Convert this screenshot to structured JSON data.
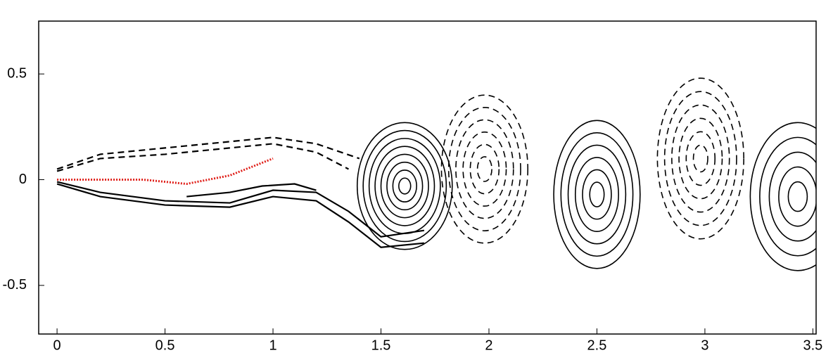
{
  "chart_data": {
    "type": "contour",
    "xlim": [
      -0.085,
      3.515
    ],
    "ylim": [
      -0.73,
      0.75
    ],
    "xticks": [
      0,
      0.5,
      1,
      1.5,
      2,
      2.5,
      3,
      3.5
    ],
    "yticks": [
      -0.5,
      0,
      0.5
    ],
    "lines": [
      {
        "style": "dashed",
        "color": "#000000",
        "x": [
          0,
          0.2,
          0.5,
          0.8,
          1.0,
          1.2,
          1.4
        ],
        "y": [
          0.05,
          0.12,
          0.15,
          0.18,
          0.2,
          0.17,
          0.1
        ]
      },
      {
        "style": "dashed",
        "color": "#000000",
        "x": [
          0,
          0.2,
          0.5,
          0.8,
          1.0,
          1.2,
          1.35
        ],
        "y": [
          0.04,
          0.1,
          0.12,
          0.15,
          0.17,
          0.13,
          0.05
        ]
      },
      {
        "style": "solid",
        "color": "#000000",
        "x": [
          0,
          0.2,
          0.5,
          0.8,
          1.0,
          1.2,
          1.35,
          1.5,
          1.7
        ],
        "y": [
          -0.02,
          -0.08,
          -0.12,
          -0.13,
          -0.08,
          -0.1,
          -0.2,
          -0.32,
          -0.3
        ]
      },
      {
        "style": "solid",
        "color": "#000000",
        "x": [
          0,
          0.2,
          0.5,
          0.8,
          1.0,
          1.2,
          1.35,
          1.5,
          1.7
        ],
        "y": [
          -0.01,
          -0.06,
          -0.1,
          -0.11,
          -0.05,
          -0.06,
          -0.15,
          -0.27,
          -0.24
        ]
      },
      {
        "style": "solid",
        "color": "#000000",
        "x": [
          0.6,
          0.8,
          0.95,
          1.1,
          1.2
        ],
        "y": [
          -0.08,
          -0.06,
          -0.03,
          -0.02,
          -0.05
        ]
      },
      {
        "style": "dotted",
        "color": "#e0201a",
        "x": [
          0,
          0.2,
          0.4,
          0.6,
          0.8,
          1.0
        ],
        "y": [
          0,
          0,
          0,
          -0.02,
          0.02,
          0.1
        ]
      }
    ],
    "vortices": [
      {
        "style": "solid",
        "x": 1.61,
        "y": -0.03,
        "rx": 0.22,
        "ry": 0.3,
        "levels": 8
      },
      {
        "style": "dashed",
        "x": 1.98,
        "y": 0.05,
        "rx": 0.2,
        "ry": 0.35,
        "levels": 6
      },
      {
        "style": "solid",
        "x": 2.5,
        "y": -0.07,
        "rx": 0.2,
        "ry": 0.35,
        "levels": 6
      },
      {
        "style": "dashed",
        "x": 2.98,
        "y": 0.1,
        "rx": 0.2,
        "ry": 0.38,
        "levels": 6
      },
      {
        "style": "solid",
        "x": 3.43,
        "y": -0.08,
        "rx": 0.22,
        "ry": 0.35,
        "levels": 5
      }
    ]
  }
}
